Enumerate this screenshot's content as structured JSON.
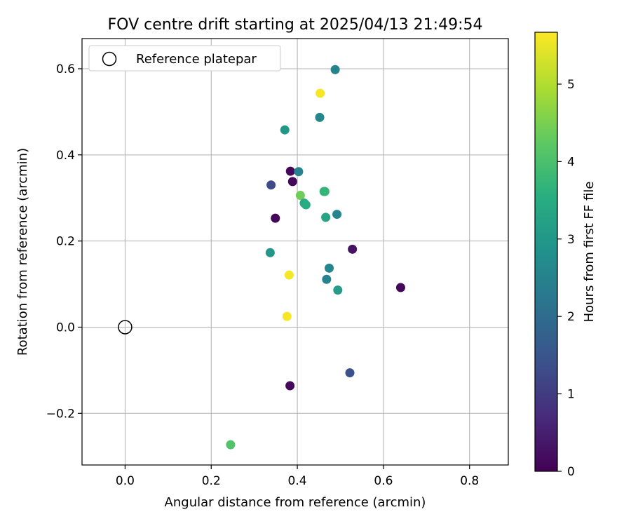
{
  "chart_data": {
    "type": "scatter",
    "title": "FOV centre drift starting at 2025/04/13 21:49:54",
    "xlabel": "Angular distance from reference (arcmin)",
    "ylabel": "Rotation from reference (arcmin)",
    "xlim": [
      -0.1,
      0.89
    ],
    "ylim": [
      -0.32,
      0.67
    ],
    "xticks": [
      0.0,
      0.2,
      0.4,
      0.6,
      0.8
    ],
    "xtick_labels": [
      "0.0",
      "0.2",
      "0.4",
      "0.6",
      "0.8"
    ],
    "yticks": [
      -0.2,
      0.0,
      0.2,
      0.4,
      0.6
    ],
    "ytick_labels": [
      "−0.2",
      "0.0",
      "0.2",
      "0.4",
      "0.6"
    ],
    "grid": true,
    "legend": {
      "position": "top-left",
      "entries": [
        "Reference platepar"
      ]
    },
    "reference_point": {
      "x": 0.0,
      "y": 0.0,
      "label": "Reference platepar"
    },
    "colorbar": {
      "label": "Hours from first FF file",
      "range": [
        0,
        5.67
      ],
      "ticks": [
        0,
        1,
        2,
        3,
        4,
        5
      ],
      "tick_labels": [
        "0",
        "1",
        "2",
        "3",
        "4",
        "5"
      ],
      "colormap": "viridis",
      "colormap_stops": [
        "#440154",
        "#472c7a",
        "#3b528b",
        "#2c728e",
        "#21918c",
        "#28ae80",
        "#5ec962",
        "#addc30",
        "#fde725"
      ]
    },
    "points": [
      {
        "x": 0.488,
        "y": 0.598,
        "hours": 2.5
      },
      {
        "x": 0.453,
        "y": 0.543,
        "hours": 5.6
      },
      {
        "x": 0.452,
        "y": 0.487,
        "hours": 2.6
      },
      {
        "x": 0.371,
        "y": 0.458,
        "hours": 3.0
      },
      {
        "x": 0.384,
        "y": 0.362,
        "hours": 0.1
      },
      {
        "x": 0.403,
        "y": 0.361,
        "hours": 2.5
      },
      {
        "x": 0.389,
        "y": 0.338,
        "hours": 0.1
      },
      {
        "x": 0.339,
        "y": 0.33,
        "hours": 1.3
      },
      {
        "x": 0.464,
        "y": 0.315,
        "hours": 3.8
      },
      {
        "x": 0.462,
        "y": 0.315,
        "hours": 3.7
      },
      {
        "x": 0.407,
        "y": 0.306,
        "hours": 4.4
      },
      {
        "x": 0.416,
        "y": 0.288,
        "hours": 3.4
      },
      {
        "x": 0.42,
        "y": 0.284,
        "hours": 3.5
      },
      {
        "x": 0.492,
        "y": 0.262,
        "hours": 2.6
      },
      {
        "x": 0.349,
        "y": 0.253,
        "hours": 0.1
      },
      {
        "x": 0.466,
        "y": 0.255,
        "hours": 3.3
      },
      {
        "x": 0.528,
        "y": 0.181,
        "hours": 0.3
      },
      {
        "x": 0.337,
        "y": 0.173,
        "hours": 3.0
      },
      {
        "x": 0.381,
        "y": 0.121,
        "hours": 5.6
      },
      {
        "x": 0.474,
        "y": 0.137,
        "hours": 2.6
      },
      {
        "x": 0.468,
        "y": 0.111,
        "hours": 2.5
      },
      {
        "x": 0.494,
        "y": 0.086,
        "hours": 3.1
      },
      {
        "x": 0.64,
        "y": 0.092,
        "hours": 0.1
      },
      {
        "x": 0.376,
        "y": 0.025,
        "hours": 5.6
      },
      {
        "x": 0.522,
        "y": -0.106,
        "hours": 1.4
      },
      {
        "x": 0.383,
        "y": -0.136,
        "hours": 0.1
      },
      {
        "x": 0.245,
        "y": -0.273,
        "hours": 4.1
      }
    ]
  }
}
